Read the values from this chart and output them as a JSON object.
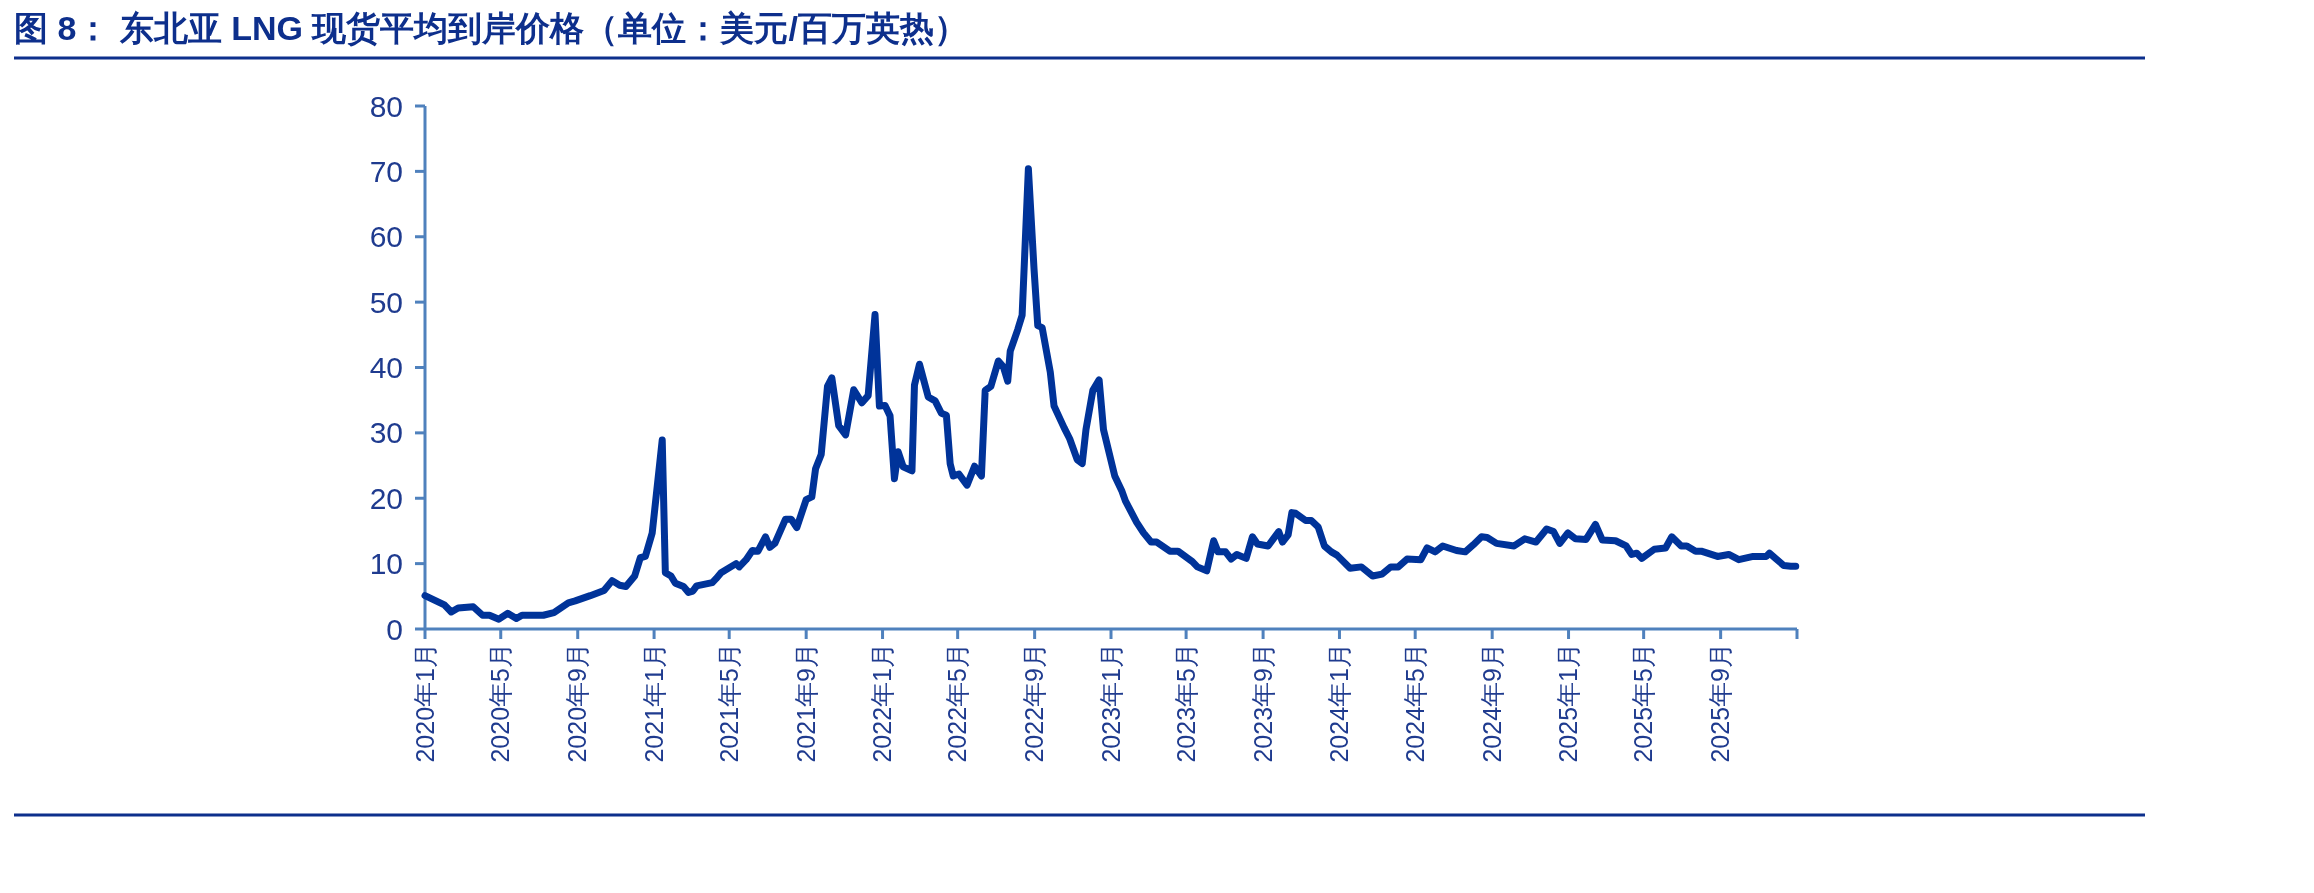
{
  "chart_data": {
    "type": "line",
    "title": "图 8： 东北亚 LNG 现货平均到岸价格（单位：美元/百万英热）",
    "x": [
      "2020-01-01",
      "2020-02-01",
      "2020-02-12",
      "2020-02-23",
      "2020-03-18",
      "2020-04-02",
      "2020-04-13",
      "2020-04-28",
      "2020-05-12",
      "2020-05-26",
      "2020-06-04",
      "2020-07-08",
      "2020-07-25",
      "2020-08-17",
      "2020-08-28",
      "2020-09-21",
      "2020-10-13",
      "2020-10-26",
      "2020-11-07",
      "2020-11-17",
      "2020-12-01",
      "2020-12-10",
      "2020-12-18",
      "2020-12-29",
      "2021-01-14",
      "2021-01-19",
      "2021-01-28",
      "2021-02-04",
      "2021-02-17",
      "2021-02-25",
      "2021-03-04",
      "2021-03-10",
      "2021-04-04",
      "2021-04-10",
      "2021-04-18",
      "2021-05-12",
      "2021-05-17",
      "2021-05-28",
      "2021-06-07",
      "2021-06-16",
      "2021-06-28",
      "2021-07-05",
      "2021-07-13",
      "2021-07-30",
      "2021-08-08",
      "2021-08-17",
      "2021-09-01",
      "2021-09-10",
      "2021-09-16",
      "2021-09-25",
      "2021-10-05",
      "2021-10-12",
      "2021-10-23",
      "2021-11-03",
      "2021-11-16",
      "2021-11-29",
      "2021-12-09",
      "2021-12-20",
      "2021-12-27",
      "2022-01-05",
      "2022-01-13",
      "2022-01-20",
      "2022-01-26",
      "2022-02-03",
      "2022-02-17",
      "2022-02-21",
      "2022-03-01",
      "2022-03-15",
      "2022-03-26",
      "2022-04-05",
      "2022-04-13",
      "2022-04-19",
      "2022-04-24",
      "2022-05-03",
      "2022-05-16",
      "2022-05-28",
      "2022-06-08",
      "2022-06-14",
      "2022-06-23",
      "2022-07-05",
      "2022-07-13",
      "2022-07-20",
      "2022-07-24",
      "2022-08-05",
      "2022-08-12",
      "2022-08-22",
      "2022-08-31",
      "2022-09-06",
      "2022-09-13",
      "2022-09-26",
      "2022-10-02",
      "2022-10-18",
      "2022-10-27",
      "2022-11-08",
      "2022-11-16",
      "2022-11-22",
      "2022-12-03",
      "2022-12-13",
      "2022-12-20",
      "2023-01-07",
      "2023-01-18",
      "2023-01-24",
      "2023-02-11",
      "2023-02-22",
      "2023-03-06",
      "2023-03-15",
      "2023-04-05",
      "2023-04-18",
      "2023-05-11",
      "2023-05-19",
      "2023-06-03",
      "2023-06-14",
      "2023-06-21",
      "2023-07-03",
      "2023-07-12",
      "2023-07-21",
      "2023-08-05",
      "2023-08-15",
      "2023-08-23",
      "2023-09-09",
      "2023-09-26",
      "2023-10-02",
      "2023-10-11",
      "2023-10-17",
      "2023-10-23",
      "2023-11-08",
      "2023-11-17",
      "2023-11-28",
      "2023-12-08",
      "2023-12-19",
      "2023-12-28",
      "2024-01-18",
      "2024-02-05",
      "2024-02-23",
      "2024-03-09",
      "2024-03-23",
      "2024-04-04",
      "2024-04-18",
      "2024-05-10",
      "2024-05-20",
      "2024-06-02",
      "2024-06-14",
      "2024-07-06",
      "2024-07-20",
      "2024-08-02",
      "2024-08-15",
      "2024-08-24",
      "2024-09-08",
      "2024-10-06",
      "2024-10-23",
      "2024-11-10",
      "2024-11-27",
      "2024-12-08",
      "2024-12-18",
      "2024-12-31",
      "2025-01-12",
      "2025-01-29",
      "2025-02-13",
      "2025-02-24",
      "2025-03-17",
      "2025-04-03",
      "2025-04-12",
      "2025-04-20",
      "2025-04-28",
      "2025-05-18",
      "2025-06-05",
      "2025-06-15",
      "2025-06-30",
      "2025-07-09",
      "2025-07-23",
      "2025-08-01",
      "2025-08-27",
      "2025-09-14",
      "2025-09-30",
      "2025-10-23",
      "2025-11-13",
      "2025-11-18",
      "2025-11-29",
      "2025-12-11",
      "2025-12-22",
      "2025-12-30"
    ],
    "series": [
      {
        "color": "#003399",
        "values": [
          5.1,
          3.7,
          2.6,
          3.2,
          3.4,
          2.1,
          2.1,
          1.5,
          2.4,
          1.6,
          2.1,
          2.1,
          2.5,
          4.0,
          4.3,
          5.1,
          5.9,
          7.4,
          6.7,
          6.5,
          8.1,
          10.9,
          11.1,
          14.7,
          28.9,
          8.6,
          8.1,
          7.0,
          6.5,
          5.6,
          5.8,
          6.6,
          7.1,
          7.7,
          8.6,
          10.0,
          9.5,
          10.6,
          12.0,
          11.9,
          14.1,
          12.5,
          13.1,
          16.8,
          16.8,
          15.5,
          19.8,
          20.2,
          24.5,
          26.7,
          37.1,
          38.4,
          31.1,
          29.7,
          36.6,
          34.6,
          35.7,
          48.1,
          34.1,
          34.2,
          32.6,
          23.0,
          27.1,
          24.8,
          24.2,
          37.3,
          40.5,
          35.5,
          34.9,
          33.0,
          32.7,
          25.3,
          23.4,
          23.7,
          22.0,
          24.9,
          23.4,
          36.5,
          37.1,
          41.0,
          40.1,
          37.9,
          42.5,
          45.8,
          48.0,
          70.4,
          55.1,
          46.4,
          46.1,
          39.3,
          34.1,
          30.8,
          29.1,
          25.9,
          25.3,
          30.5,
          36.5,
          38.1,
          30.5,
          23.4,
          21.2,
          19.6,
          16.3,
          14.7,
          13.3,
          13.3,
          11.9,
          11.9,
          10.3,
          9.5,
          8.9,
          13.5,
          11.8,
          11.8,
          10.7,
          11.4,
          10.8,
          14.1,
          13.0,
          12.7,
          14.9,
          13.3,
          14.4,
          17.8,
          17.7,
          16.6,
          16.6,
          15.6,
          12.7,
          11.8,
          11.3,
          9.3,
          9.5,
          8.1,
          8.4,
          9.5,
          9.5,
          10.7,
          10.6,
          12.4,
          11.8,
          12.7,
          12.0,
          11.8,
          12.9,
          14.1,
          14.0,
          13.1,
          12.7,
          13.8,
          13.3,
          15.3,
          14.9,
          13.1,
          14.7,
          13.8,
          13.7,
          16.0,
          13.6,
          13.5,
          12.7,
          11.4,
          11.6,
          10.8,
          12.2,
          12.4,
          14.1,
          12.7,
          12.7,
          11.9,
          11.9,
          11.1,
          11.4,
          10.6,
          11.1,
          11.1,
          11.6,
          10.7,
          9.7,
          9.6,
          9.6
        ]
      }
    ],
    "xlim": [
      "2020-01-01",
      "2026-01-01"
    ],
    "xticks": [
      {
        "value": "2020-01-01",
        "label": "2020年1月"
      },
      {
        "value": "2020-05-01",
        "label": "2020年5月"
      },
      {
        "value": "2020-09-01",
        "label": "2020年9月"
      },
      {
        "value": "2021-01-01",
        "label": "2021年1月"
      },
      {
        "value": "2021-05-01",
        "label": "2021年5月"
      },
      {
        "value": "2021-09-01",
        "label": "2021年9月"
      },
      {
        "value": "2022-01-01",
        "label": "2022年1月"
      },
      {
        "value": "2022-05-01",
        "label": "2022年5月"
      },
      {
        "value": "2022-09-01",
        "label": "2022年9月"
      },
      {
        "value": "2023-01-01",
        "label": "2023年1月"
      },
      {
        "value": "2023-05-01",
        "label": "2023年5月"
      },
      {
        "value": "2023-09-01",
        "label": "2023年9月"
      },
      {
        "value": "2024-01-01",
        "label": "2024年1月"
      },
      {
        "value": "2024-05-01",
        "label": "2024年5月"
      },
      {
        "value": "2024-09-01",
        "label": "2024年9月"
      },
      {
        "value": "2025-01-01",
        "label": "2025年1月"
      },
      {
        "value": "2025-05-01",
        "label": "2025年5月"
      },
      {
        "value": "2025-09-01",
        "label": "2025年9月"
      },
      {
        "value": "2026-01-01",
        "label": null
      }
    ],
    "ylim": [
      0,
      80
    ],
    "yticks": [
      0,
      10,
      20,
      30,
      40,
      50,
      60,
      70,
      80
    ],
    "marker": "none",
    "line_style": "solid",
    "grid": false
  }
}
